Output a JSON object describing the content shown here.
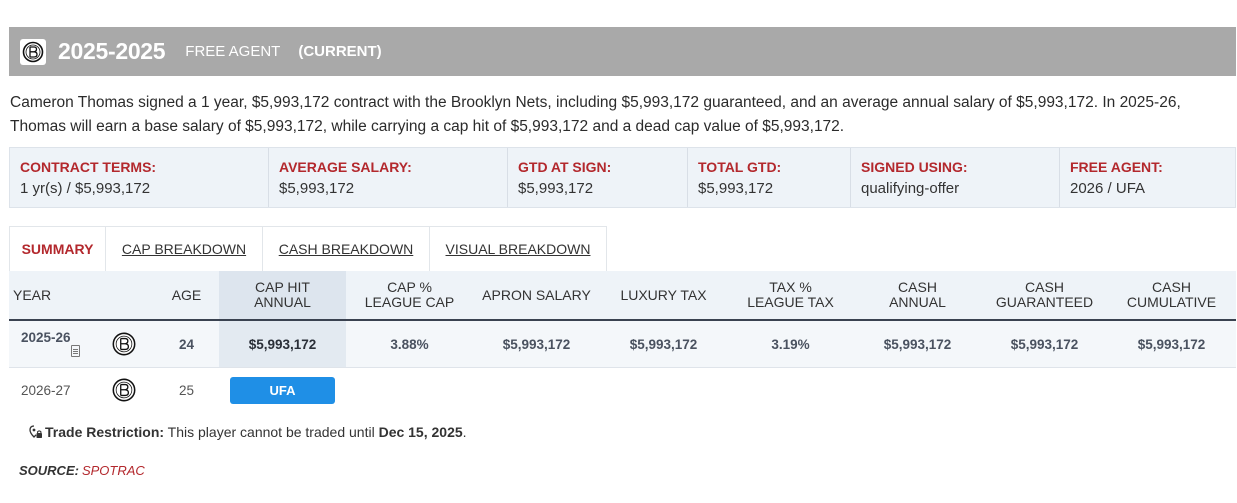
{
  "header": {
    "years": "2025-2025",
    "status": "FREE AGENT",
    "current": "(CURRENT)",
    "logo_icon": "nets-logo-icon"
  },
  "summary": {
    "line1": "Cameron Thomas signed a 1 year, $5,993,172 contract with the Brooklyn Nets, including $5,993,172 guaranteed, and an average annual salary of $5,993,172. In 2025-26,",
    "line2": "Thomas will earn a base salary of $5,993,172, while carrying a cap hit of $5,993,172 and a dead cap value of $5,993,172."
  },
  "terms": [
    {
      "label": "CONTRACT TERMS:",
      "value": "1 yr(s) / $5,993,172"
    },
    {
      "label": "AVERAGE SALARY:",
      "value": "$5,993,172"
    },
    {
      "label": "GTD AT SIGN:",
      "value": "$5,993,172"
    },
    {
      "label": "TOTAL GTD:",
      "value": "$5,993,172"
    },
    {
      "label": "SIGNED USING:",
      "value": "qualifying-offer"
    },
    {
      "label": "FREE AGENT:",
      "value": "2026 / UFA"
    }
  ],
  "tabs": [
    "SUMMARY",
    "CAP BREAKDOWN",
    "CASH BREAKDOWN",
    "VISUAL BREAKDOWN"
  ],
  "columns": {
    "year": "YEAR",
    "age": "AGE",
    "cap_hit": [
      "CAP HIT",
      "ANNUAL"
    ],
    "cap_pct": [
      "CAP %",
      "LEAGUE CAP"
    ],
    "apron": "APRON SALARY",
    "luxury": "LUXURY TAX",
    "tax_pct": [
      "TAX %",
      "LEAGUE TAX"
    ],
    "cash_annual": [
      "CASH",
      "ANNUAL"
    ],
    "cash_gtd": [
      "CASH",
      "GUARANTEED"
    ],
    "cash_cum": [
      "CASH",
      "CUMULATIVE"
    ]
  },
  "rows": [
    {
      "year": "2025-26",
      "age": "24",
      "cap_hit": "$5,993,172",
      "cap_pct": "3.88%",
      "apron": "$5,993,172",
      "luxury": "$5,993,172",
      "tax_pct": "3.19%",
      "cash_annual": "$5,993,172",
      "cash_gtd": "$5,993,172",
      "cash_cum": "$5,993,172"
    },
    {
      "year": "2026-27",
      "age": "25",
      "badge": "UFA"
    }
  ],
  "restriction": {
    "label": "Trade Restriction:",
    "text": " This player cannot be traded until ",
    "date": "Dec 15, 2025",
    "end": ".",
    "icon": "location-lock-icon"
  },
  "source": {
    "label": "SOURCE:",
    "name": "SPOTRAC"
  },
  "colors": {
    "accent_red": "#b3282d",
    "header_gray": "#a9a9a9",
    "ufa_blue": "#1f8fe6"
  }
}
